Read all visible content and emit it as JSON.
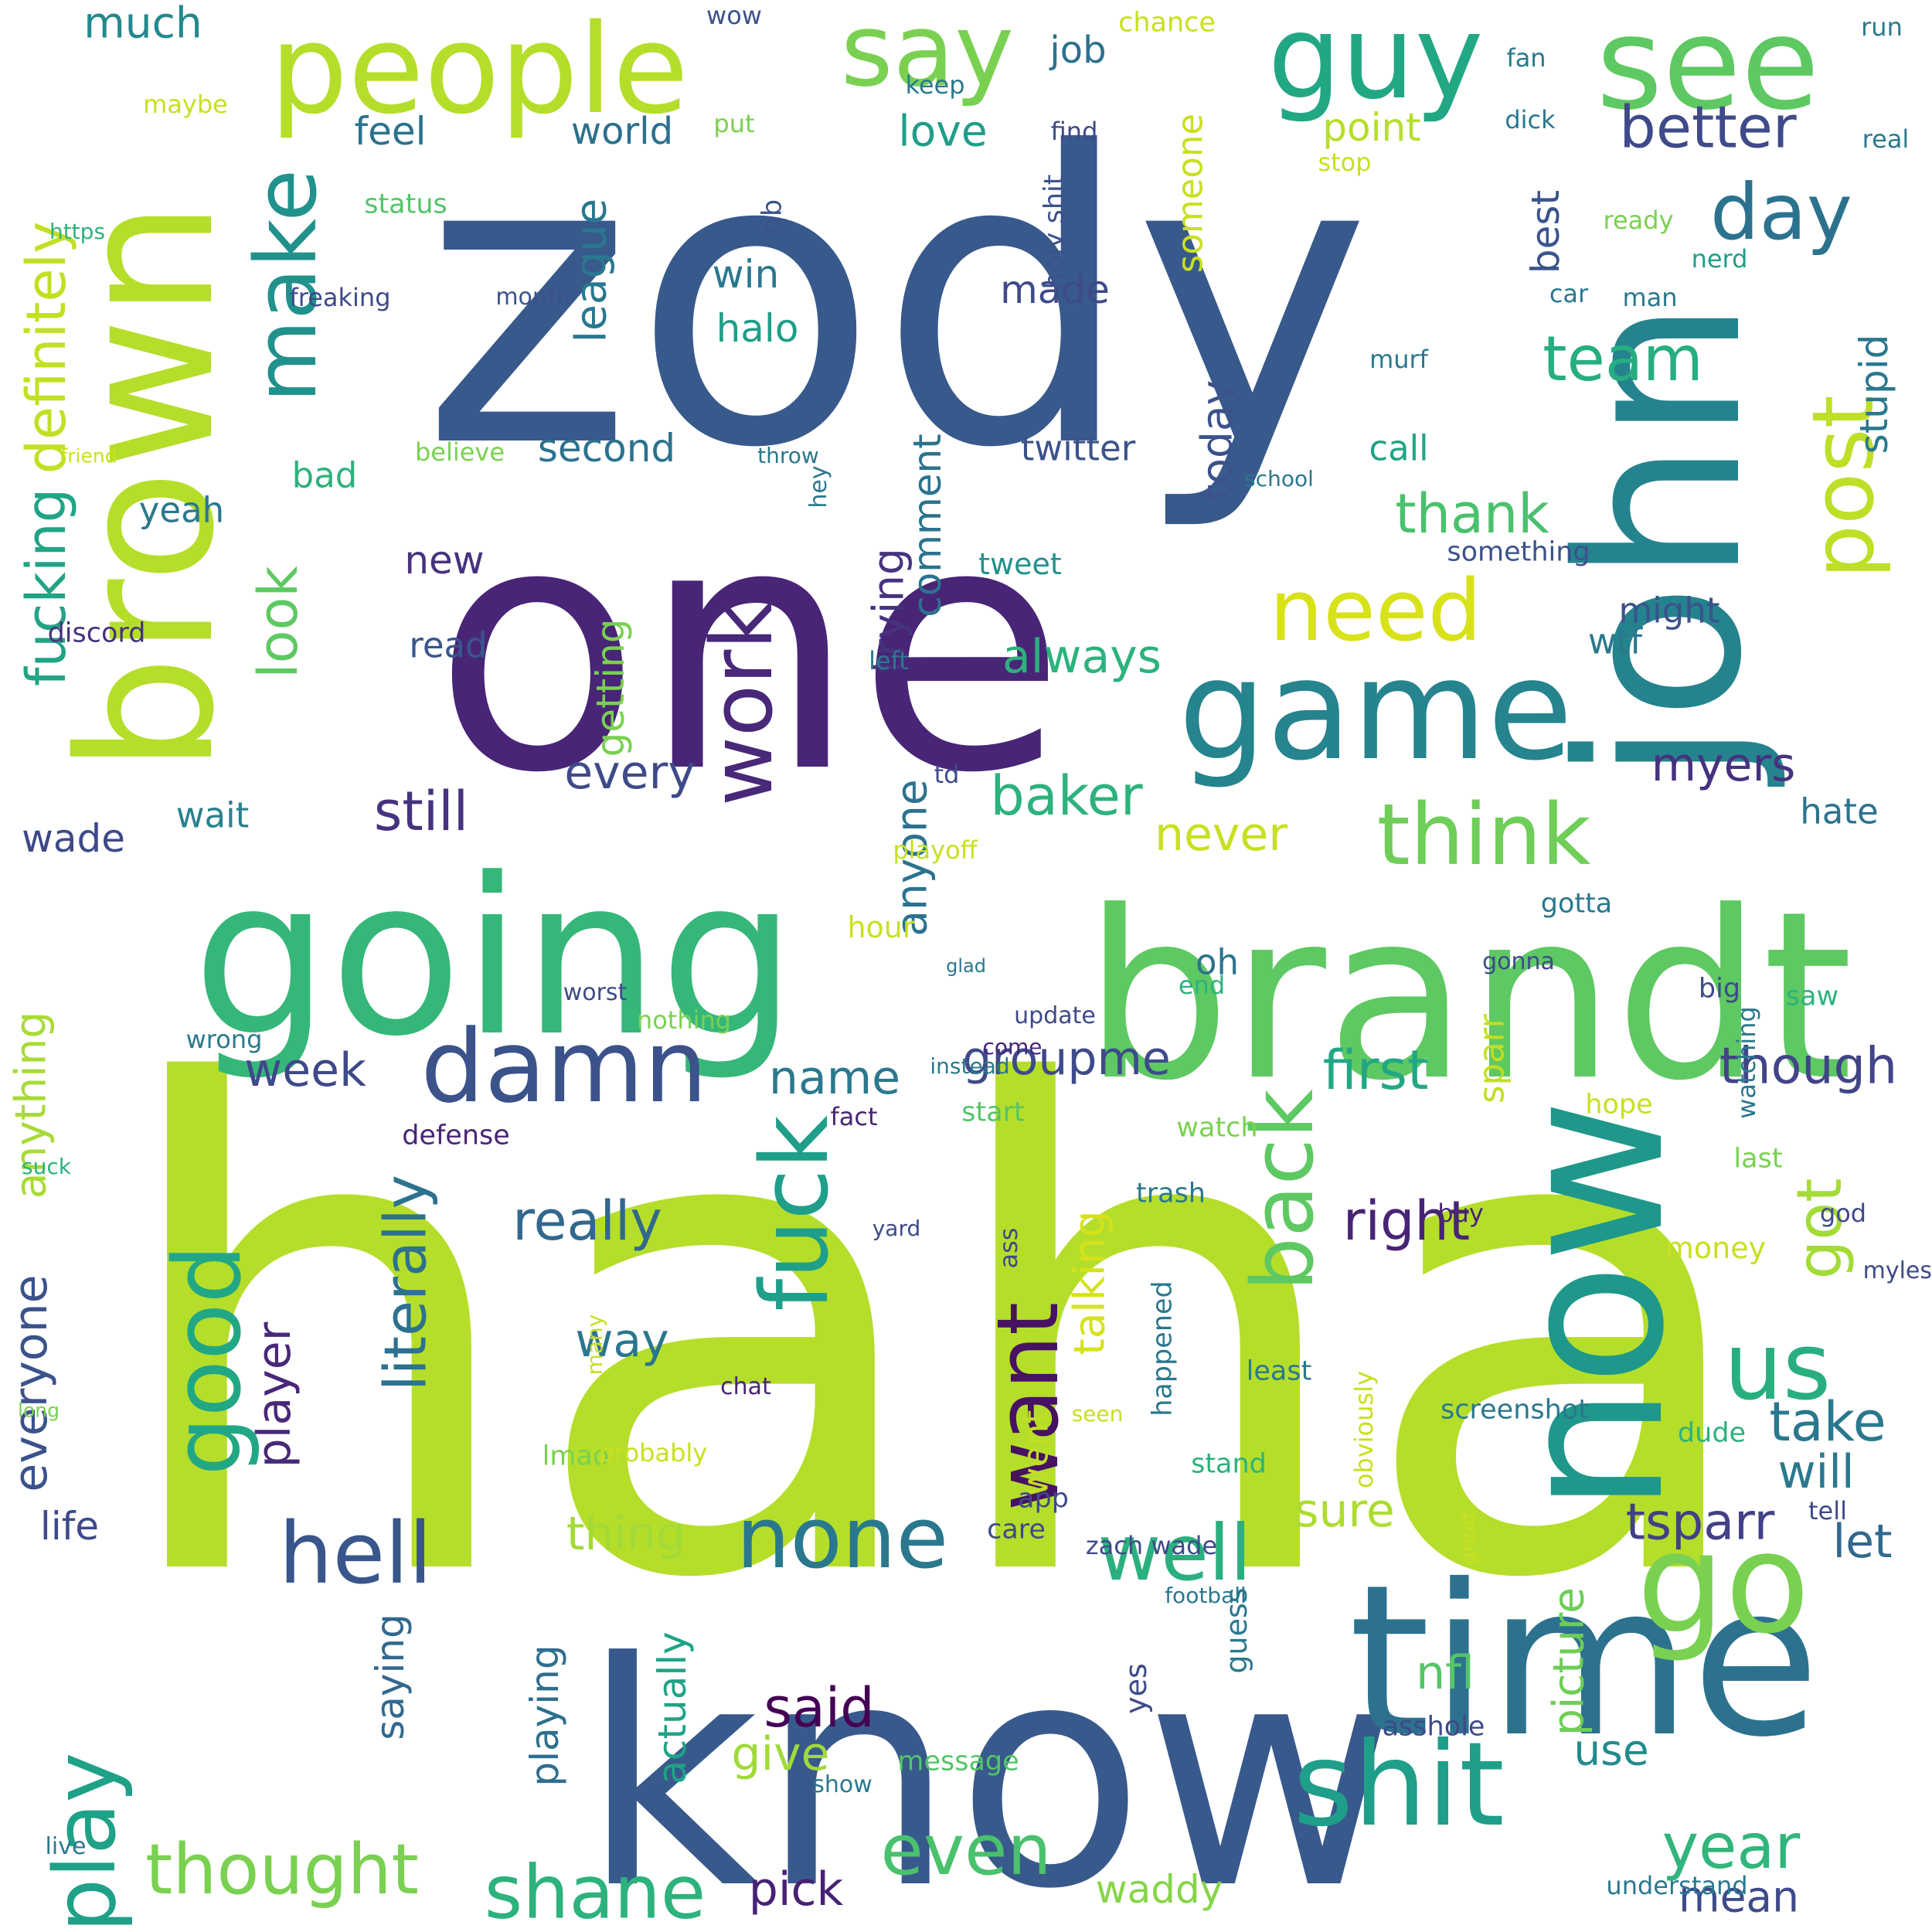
{
  "words": [
    {
      "text": "haha",
      "color": "#b5de2b",
      "vertical": false
    },
    {
      "text": "zody",
      "color": "#38598c",
      "vertical": false
    },
    {
      "text": "one",
      "color": "#482576",
      "vertical": false
    },
    {
      "text": "know",
      "color": "#38598c",
      "vertical": false
    },
    {
      "text": "brandt",
      "color": "#5ec962",
      "vertical": false
    },
    {
      "text": "going",
      "color": "#35b779",
      "vertical": false
    },
    {
      "text": "john",
      "color": "#25838e",
      "vertical": true
    },
    {
      "text": "time",
      "color": "#2c728e",
      "vertical": false
    },
    {
      "text": "now",
      "color": "#1f988b",
      "vertical": true
    },
    {
      "text": "brown",
      "color": "#b5de2b",
      "vertical": true
    },
    {
      "text": "game",
      "color": "#25848e",
      "vertical": false
    },
    {
      "text": "people",
      "color": "#b5de2b",
      "vertical": false
    },
    {
      "text": "see",
      "color": "#5ec962",
      "vertical": false
    },
    {
      "text": "guy",
      "color": "#22a785",
      "vertical": false
    },
    {
      "text": "say",
      "color": "#7ad151",
      "vertical": false
    },
    {
      "text": "shit",
      "color": "#1f9e89",
      "vertical": false
    },
    {
      "text": "go",
      "color": "#7ad151",
      "vertical": false
    },
    {
      "text": "damn",
      "color": "#3b528b",
      "vertical": false
    },
    {
      "text": "think",
      "color": "#6ece58",
      "vertical": false
    },
    {
      "text": "need",
      "color": "#d8e219",
      "vertical": false
    },
    {
      "text": "make",
      "color": "#21918c",
      "vertical": true
    },
    {
      "text": "work",
      "color": "#482878",
      "vertical": true
    },
    {
      "text": "fuck",
      "color": "#1f9e89",
      "vertical": true
    },
    {
      "text": "want",
      "color": "#471164",
      "vertical": true
    },
    {
      "text": "hell",
      "color": "#39568c",
      "vertical": false
    },
    {
      "text": "none",
      "color": "#2a788e",
      "vertical": false
    },
    {
      "text": "good",
      "color": "#22a785",
      "vertical": true
    },
    {
      "text": "play",
      "color": "#1fa187",
      "vertical": true
    },
    {
      "text": "post",
      "color": "#bddf26",
      "vertical": true
    },
    {
      "text": "us",
      "color": "#29af7f",
      "vertical": false
    },
    {
      "text": "back",
      "color": "#5ec962",
      "vertical": true
    },
    {
      "text": "well",
      "color": "#2ab07f",
      "vertical": false
    },
    {
      "text": "shane",
      "color": "#2db27d",
      "vertical": false
    },
    {
      "text": "thought",
      "color": "#7ad151",
      "vertical": false
    },
    {
      "text": "even",
      "color": "#4ac16d",
      "vertical": false
    },
    {
      "text": "day",
      "color": "#2c728e",
      "vertical": false
    },
    {
      "text": "team",
      "color": "#26ad81",
      "vertical": false
    },
    {
      "text": "better",
      "color": "#3e4a89",
      "vertical": false
    },
    {
      "text": "year",
      "color": "#31b57b",
      "vertical": false
    },
    {
      "text": "definitely",
      "color": "#c2df23",
      "vertical": true
    },
    {
      "text": "fucking",
      "color": "#20a486",
      "vertical": true
    },
    {
      "text": "literally",
      "color": "#2c728e",
      "vertical": true
    },
    {
      "text": "baker",
      "color": "#2db27d",
      "vertical": false
    },
    {
      "text": "myers",
      "color": "#46327e",
      "vertical": false
    },
    {
      "text": "groupme",
      "color": "#3e4a89",
      "vertical": false
    },
    {
      "text": "really",
      "color": "#31688e",
      "vertical": false
    },
    {
      "text": "right",
      "color": "#482475",
      "vertical": false
    },
    {
      "text": "first",
      "color": "#22a785",
      "vertical": false
    },
    {
      "text": "though",
      "color": "#414487",
      "vertical": false
    },
    {
      "text": "still",
      "color": "#46327e",
      "vertical": false
    },
    {
      "text": "every",
      "color": "#3e4a89",
      "vertical": false
    },
    {
      "text": "week",
      "color": "#3e4989",
      "vertical": false
    },
    {
      "text": "name",
      "color": "#2a788e",
      "vertical": false
    },
    {
      "text": "always",
      "color": "#2db27d",
      "vertical": false
    },
    {
      "text": "never",
      "color": "#c8e020",
      "vertical": false
    },
    {
      "text": "thank",
      "color": "#4ac16d",
      "vertical": false
    },
    {
      "text": "take",
      "color": "#2a788e",
      "vertical": false
    },
    {
      "text": "will",
      "color": "#2a788e",
      "vertical": false
    },
    {
      "text": "tsparr",
      "color": "#424086",
      "vertical": false
    },
    {
      "text": "let",
      "color": "#31688e",
      "vertical": false
    },
    {
      "text": "sure",
      "color": "#addc30",
      "vertical": false
    },
    {
      "text": "thing",
      "color": "#a2da37",
      "vertical": false
    },
    {
      "text": "way",
      "color": "#2a768e",
      "vertical": false
    },
    {
      "text": "said",
      "color": "#440154",
      "vertical": false
    },
    {
      "text": "give",
      "color": "#a0da39",
      "vertical": false
    },
    {
      "text": "pick",
      "color": "#482173",
      "vertical": false
    },
    {
      "text": "waddy",
      "color": "#86d549",
      "vertical": false
    },
    {
      "text": "mean",
      "color": "#3e4a89",
      "vertical": false
    },
    {
      "text": "use",
      "color": "#228b8d",
      "vertical": false
    },
    {
      "text": "nfl",
      "color": "#54c568",
      "vertical": false
    },
    {
      "text": "got",
      "color": "#a5db36",
      "vertical": true
    },
    {
      "text": "look",
      "color": "#5ec962",
      "vertical": true
    },
    {
      "text": "player",
      "color": "#482878",
      "vertical": true
    },
    {
      "text": "everyone",
      "color": "#3b528b",
      "vertical": true
    },
    {
      "text": "anything",
      "color": "#a8db34",
      "vertical": true
    },
    {
      "text": "anyone",
      "color": "#2c728e",
      "vertical": true
    },
    {
      "text": "trying",
      "color": "#46337f",
      "vertical": true
    },
    {
      "text": "comment",
      "color": "#2c728e",
      "vertical": true
    },
    {
      "text": "league",
      "color": "#2a788e",
      "vertical": true
    },
    {
      "text": "today",
      "color": "#3b528b",
      "vertical": true
    },
    {
      "text": "stupid",
      "color": "#2a788e",
      "vertical": true
    },
    {
      "text": "best",
      "color": "#3a548c",
      "vertical": true
    },
    {
      "text": "talking",
      "color": "#d5e21a",
      "vertical": true
    },
    {
      "text": "picture",
      "color": "#6ece58",
      "vertical": true
    },
    {
      "text": "saying",
      "color": "#31688e",
      "vertical": true
    },
    {
      "text": "playing",
      "color": "#2e6e8e",
      "vertical": true
    },
    {
      "text": "actually",
      "color": "#20a386",
      "vertical": true
    },
    {
      "text": "getting",
      "color": "#7ad151",
      "vertical": true
    },
    {
      "text": "much",
      "color": "#23898e",
      "vertical": false
    },
    {
      "text": "feel",
      "color": "#2c728e",
      "vertical": false
    },
    {
      "text": "world",
      "color": "#2d708e",
      "vertical": false
    },
    {
      "text": "love",
      "color": "#1f9e89",
      "vertical": false
    },
    {
      "text": "job",
      "color": "#2d708e",
      "vertical": false
    },
    {
      "text": "point",
      "color": "#b5de2b",
      "vertical": false
    },
    {
      "text": "win",
      "color": "#2a788e",
      "vertical": false
    },
    {
      "text": "halo",
      "color": "#1f9e89",
      "vertical": false
    },
    {
      "text": "made",
      "color": "#3e4a89",
      "vertical": false
    },
    {
      "text": "second",
      "color": "#2c728e",
      "vertical": false
    },
    {
      "text": "call",
      "color": "#20a386",
      "vertical": false
    },
    {
      "text": "bad",
      "color": "#2db27d",
      "vertical": false
    },
    {
      "text": "yeah",
      "color": "#2a788e",
      "vertical": false
    },
    {
      "text": "new",
      "color": "#46327e",
      "vertical": false
    },
    {
      "text": "read",
      "color": "#39568c",
      "vertical": false
    },
    {
      "text": "might",
      "color": "#3b528b",
      "vertical": false
    },
    {
      "text": "wtf",
      "color": "#2a788e",
      "vertical": false
    },
    {
      "text": "wait",
      "color": "#26828e",
      "vertical": false
    },
    {
      "text": "wade",
      "color": "#3e4989",
      "vertical": false
    },
    {
      "text": "hate",
      "color": "#2c728e",
      "vertical": false
    },
    {
      "text": "oh",
      "color": "#2c728e",
      "vertical": false
    },
    {
      "text": "life",
      "color": "#3e4a89",
      "vertical": false
    },
    {
      "text": "sparr",
      "color": "#c2df23",
      "vertical": true
    },
    {
      "text": "went",
      "color": "#c0df25",
      "vertical": true
    },
    {
      "text": "someone",
      "color": "#c8e020",
      "vertical": true
    },
    {
      "text": "qb",
      "color": "#3b528b",
      "vertical": true
    },
    {
      "text": "wow",
      "color": "#3b528b",
      "vertical": false
    },
    {
      "text": "chance",
      "color": "#c8e020",
      "vertical": false
    },
    {
      "text": "run",
      "color": "#2a788e",
      "vertical": false
    },
    {
      "text": "fan",
      "color": "#2a788e",
      "vertical": false
    },
    {
      "text": "keep",
      "color": "#2a788e",
      "vertical": false
    },
    {
      "text": "maybe",
      "color": "#c8e020",
      "vertical": false
    },
    {
      "text": "put",
      "color": "#7ad151",
      "vertical": false
    },
    {
      "text": "find",
      "color": "#3e4a89",
      "vertical": false
    },
    {
      "text": "dick",
      "color": "#2a788e",
      "vertical": false
    },
    {
      "text": "real",
      "color": "#2a788e",
      "vertical": false
    },
    {
      "text": "stop",
      "color": "#c8e020",
      "vertical": false
    },
    {
      "text": "https",
      "color": "#2db27d",
      "vertical": false
    },
    {
      "text": "status",
      "color": "#52c569",
      "vertical": false
    },
    {
      "text": "holy shit",
      "color": "#3b528b",
      "vertical": true
    },
    {
      "text": "ready",
      "color": "#7ad151",
      "vertical": false
    },
    {
      "text": "nerd",
      "color": "#1f9e89",
      "vertical": false
    },
    {
      "text": "freaking",
      "color": "#3e4a89",
      "vertical": false
    },
    {
      "text": "month",
      "color": "#3b528b",
      "vertical": false
    },
    {
      "text": "car",
      "color": "#2a788e",
      "vertical": false
    },
    {
      "text": "man",
      "color": "#2a788e",
      "vertical": false
    },
    {
      "text": "murf",
      "color": "#2a788e",
      "vertical": false
    },
    {
      "text": "believe",
      "color": "#7ad151",
      "vertical": false
    },
    {
      "text": "throw",
      "color": "#2a788e",
      "vertical": false
    },
    {
      "text": "hey",
      "color": "#2a788e",
      "vertical": true
    },
    {
      "text": "friend",
      "color": "#c8e020",
      "vertical": false
    },
    {
      "text": "school",
      "color": "#2a788e",
      "vertical": false
    },
    {
      "text": "twitter",
      "color": "#3b528b",
      "vertical": false
    },
    {
      "text": "tweet",
      "color": "#21918c",
      "vertical": false
    },
    {
      "text": "something",
      "color": "#3b528b",
      "vertical": false
    },
    {
      "text": "discord",
      "color": "#46327e",
      "vertical": false
    },
    {
      "text": "left",
      "color": "#2a788e",
      "vertical": false
    },
    {
      "text": "td",
      "color": "#3e4a89",
      "vertical": false
    },
    {
      "text": "playoff",
      "color": "#c8e020",
      "vertical": false
    },
    {
      "text": "hour",
      "color": "#c8e020",
      "vertical": false
    },
    {
      "text": "gotta",
      "color": "#2a788e",
      "vertical": false
    },
    {
      "text": "nothing",
      "color": "#7ad151",
      "vertical": false
    },
    {
      "text": "saw",
      "color": "#2db27d",
      "vertical": false
    },
    {
      "text": "gonna",
      "color": "#3e4a89",
      "vertical": false
    },
    {
      "text": "fact",
      "color": "#482576",
      "vertical": false
    },
    {
      "text": "end",
      "color": "#2db27d",
      "vertical": false
    },
    {
      "text": "update",
      "color": "#3e4a89",
      "vertical": false
    },
    {
      "text": "watch",
      "color": "#7ad151",
      "vertical": false
    },
    {
      "text": "hope",
      "color": "#c8e020",
      "vertical": false
    },
    {
      "text": "defense",
      "color": "#482576",
      "vertical": false
    },
    {
      "text": "start",
      "color": "#52c569",
      "vertical": false
    },
    {
      "text": "trash",
      "color": "#2a788e",
      "vertical": false
    },
    {
      "text": "last",
      "color": "#7ad151",
      "vertical": false
    },
    {
      "text": "screenshot",
      "color": "#2a788e",
      "vertical": false
    },
    {
      "text": "long",
      "color": "#7ad151",
      "vertical": false
    },
    {
      "text": "least",
      "color": "#2a788e",
      "vertical": false
    },
    {
      "text": "dude",
      "color": "#2db27d",
      "vertical": false
    },
    {
      "text": "care",
      "color": "#3e4a89",
      "vertical": false
    },
    {
      "text": "tell",
      "color": "#3e4a89",
      "vertical": false
    },
    {
      "text": "happened",
      "color": "#2a788e",
      "vertical": true
    },
    {
      "text": "chat",
      "color": "#482576",
      "vertical": false
    },
    {
      "text": "lmao",
      "color": "#7ad151",
      "vertical": false
    },
    {
      "text": "stand",
      "color": "#2db27d",
      "vertical": false
    },
    {
      "text": "probably",
      "color": "#c8e020",
      "vertical": false
    },
    {
      "text": "app",
      "color": "#3e4a89",
      "vertical": false
    },
    {
      "text": "big",
      "color": "#3e4a89",
      "vertical": false
    },
    {
      "text": "watching",
      "color": "#2a788e",
      "vertical": true
    },
    {
      "text": "suck",
      "color": "#2db27d",
      "vertical": false
    },
    {
      "text": "instead",
      "color": "#2a788e",
      "vertical": false
    },
    {
      "text": "wrong",
      "color": "#2a788e",
      "vertical": false
    },
    {
      "text": "come",
      "color": "#482576",
      "vertical": false
    },
    {
      "text": "god",
      "color": "#3e4a89",
      "vertical": false
    },
    {
      "text": "buy",
      "color": "#482576",
      "vertical": false
    },
    {
      "text": "yard",
      "color": "#3e4a89",
      "vertical": false
    },
    {
      "text": "money",
      "color": "#c8e020",
      "vertical": false
    },
    {
      "text": "myles",
      "color": "#3e4a89",
      "vertical": false
    },
    {
      "text": "worst",
      "color": "#3e4a89",
      "vertical": false
    },
    {
      "text": "football",
      "color": "#2a788e",
      "vertical": false
    },
    {
      "text": "live",
      "color": "#2a788e",
      "vertical": false
    },
    {
      "text": "ass",
      "color": "#3e4a89",
      "vertical": true
    },
    {
      "text": "obviously",
      "color": "#c8e020",
      "vertical": true
    },
    {
      "text": "many",
      "color": "#c8e020",
      "vertical": true
    },
    {
      "text": "seen",
      "color": "#c8e020",
      "vertical": false
    },
    {
      "text": "zach wade",
      "color": "#3e4a89",
      "vertical": false
    },
    {
      "text": "great",
      "color": "#c8e020",
      "vertical": true
    },
    {
      "text": "guess",
      "color": "#2a788e",
      "vertical": true
    },
    {
      "text": "yes",
      "color": "#3e4a89",
      "vertical": true
    },
    {
      "text": "message",
      "color": "#52c569",
      "vertical": false
    },
    {
      "text": "show",
      "color": "#2a788e",
      "vertical": false
    },
    {
      "text": "asshole",
      "color": "#3e4a89",
      "vertical": false
    },
    {
      "text": "understand",
      "color": "#2a788e",
      "vertical": false
    },
    {
      "text": "glad",
      "color": "#2a788e",
      "vertical": false
    }
  ]
}
